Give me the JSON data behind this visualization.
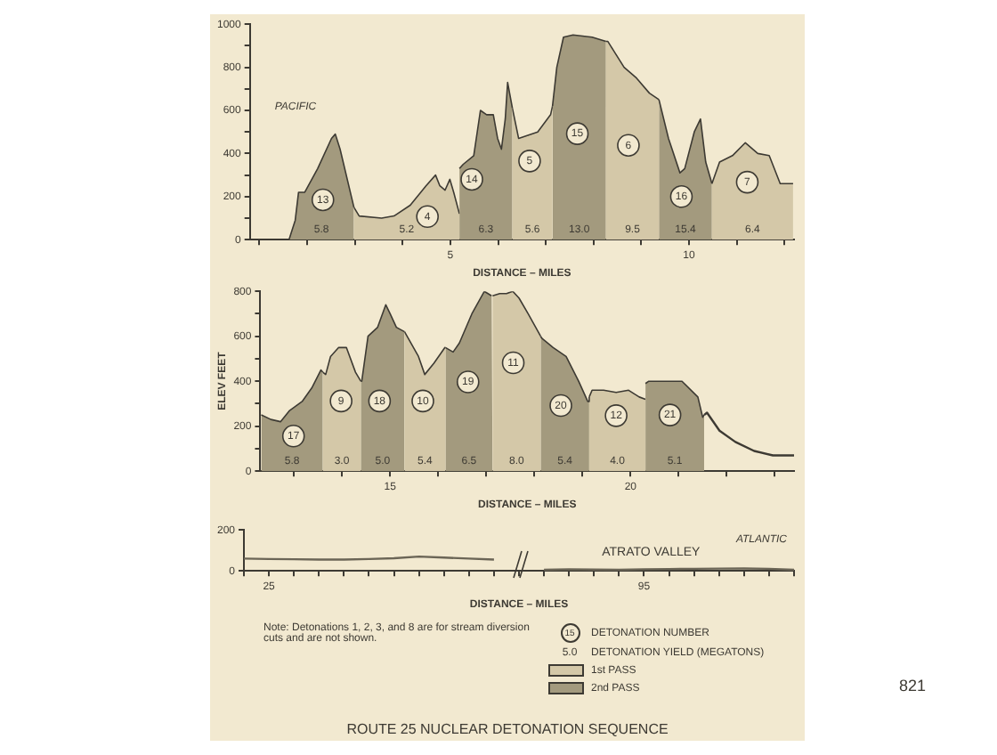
{
  "chart_data": [
    {
      "type": "area",
      "xlabel": "DISTANCE – MILES",
      "xlim": [
        0.8,
        12.2
      ],
      "xticks": [
        {
          "value": 1,
          "label": null
        },
        {
          "value": 2,
          "label": null
        },
        {
          "value": 3,
          "label": null
        },
        {
          "value": 4,
          "label": null
        },
        5,
        {
          "value": 6,
          "label": null
        },
        {
          "value": 7,
          "label": null
        },
        {
          "value": 8,
          "label": null
        },
        {
          "value": 9,
          "label": null
        },
        10,
        {
          "value": 11,
          "label": null
        },
        {
          "value": 12,
          "label": null
        }
      ],
      "ylim": [
        0,
        1000
      ],
      "yticks": [
        0,
        {
          "value": 100,
          "label": null
        },
        200,
        {
          "value": 300,
          "label": null
        },
        400,
        {
          "value": 500,
          "label": null
        },
        600,
        {
          "value": 700,
          "label": null
        },
        800,
        {
          "value": 900,
          "label": null
        },
        1000
      ],
      "grid": false,
      "legend": "bottom",
      "series": [
        {
          "name": "2nd PASS",
          "color": "#a39a7e",
          "x": [
            1.62,
            1.75,
            1.82,
            1.95,
            2.22,
            2.51,
            2.59,
            2.69,
            2.98,
            null,
            5.19,
            5.27,
            5.49,
            5.63,
            5.76,
            5.9,
            5.99,
            6.07,
            6.15,
            6.2,
            6.3,
            null,
            7.14,
            7.23,
            7.37,
            7.57,
            7.97,
            8.26,
            null,
            9.37,
            9.57,
            9.81,
            9.91,
            10.11,
            10.24,
            10.35,
            10.48
          ],
          "values": [
            0,
            90,
            220,
            220,
            330,
            470,
            490,
            420,
            150,
            null,
            330,
            350,
            390,
            600,
            580,
            580,
            470,
            420,
            560,
            730,
            610,
            null,
            620,
            800,
            940,
            950,
            940,
            920,
            null,
            650,
            470,
            310,
            330,
            500,
            560,
            360,
            260
          ]
        },
        {
          "name": "1st PASS",
          "color": "#d4c8a8",
          "x": [
            2.98,
            3.09,
            3.56,
            3.82,
            4.16,
            4.49,
            4.69,
            4.78,
            4.89,
            4.99,
            5.07,
            5.19,
            null,
            6.3,
            6.43,
            6.83,
            7.1,
            7.14,
            null,
            8.26,
            8.3,
            8.64,
            8.9,
            9.17,
            9.37,
            null,
            10.48,
            10.64,
            10.91,
            11.18,
            11.44,
            11.68,
            11.91,
            12.18
          ],
          "values": [
            150,
            110,
            100,
            110,
            160,
            250,
            300,
            250,
            230,
            280,
            220,
            120,
            null,
            610,
            470,
            500,
            580,
            620,
            null,
            920,
            920,
            800,
            750,
            680,
            650,
            null,
            260,
            360,
            390,
            450,
            400,
            390,
            260,
            260
          ]
        }
      ],
      "annotations": [
        "PACIFIC",
        {
          "text": "13",
          "x": 2.33,
          "y": 185
        },
        {
          "text": "4",
          "x": 4.52,
          "y": 107
        },
        {
          "text": "14",
          "x": 5.45,
          "y": 280
        },
        {
          "text": "5",
          "x": 6.66,
          "y": 365
        },
        {
          "text": "15",
          "x": 7.66,
          "y": 492
        },
        {
          "text": "6",
          "x": 8.73,
          "y": 438
        },
        {
          "text": "16",
          "x": 9.84,
          "y": 200
        },
        {
          "text": "7",
          "x": 11.22,
          "y": 267
        },
        "5.8",
        "5.2",
        "6.3",
        "5.6",
        "13.0",
        "9.5",
        "15.4",
        "6.4"
      ]
    },
    {
      "type": "area",
      "xlabel": "DISTANCE – MILES",
      "ylabel": "ELEV FEET",
      "xlim": [
        12.3,
        23.4
      ],
      "xticks": [
        {
          "value": 13,
          "label": null
        },
        {
          "value": 14,
          "label": null
        },
        15,
        {
          "value": 16,
          "label": null
        },
        {
          "value": 17,
          "label": null
        },
        {
          "value": 18,
          "label": null
        },
        {
          "value": 19,
          "label": null
        },
        20,
        {
          "value": 21,
          "label": null
        },
        {
          "value": 22,
          "label": null
        },
        {
          "value": 23,
          "label": null
        }
      ],
      "ylim": [
        0,
        800
      ],
      "yticks": [
        0,
        {
          "value": 100,
          "label": null
        },
        200,
        {
          "value": 300,
          "label": null
        },
        400,
        {
          "value": 500,
          "label": null
        },
        600,
        {
          "value": 700,
          "label": null
        },
        800
      ],
      "grid": false,
      "series": [
        {
          "color": "#a39a7e",
          "x": [
            12.32,
            12.52,
            12.72,
            12.91,
            13.17,
            13.37,
            13.56,
            13.6,
            null,
            14.39,
            14.41,
            14.54,
            14.74,
            14.91,
            15.0,
            15.13,
            15.3,
            null,
            16.15,
            16.31,
            16.44,
            16.7,
            16.96,
            17.11,
            17.13,
            null,
            18.13,
            18.16,
            18.39,
            18.66,
            18.92,
            19.11,
            19.14,
            null,
            20.31,
            20.38,
            20.74,
            21.07,
            21.4,
            21.5,
            21.53
          ],
          "values": [
            250,
            230,
            220,
            270,
            310,
            370,
            450,
            440,
            null,
            400,
            400,
            600,
            640,
            740,
            700,
            640,
            620,
            null,
            550,
            530,
            570,
            700,
            800,
            780,
            780,
            null,
            600,
            590,
            550,
            510,
            400,
            310,
            330,
            null,
            390,
            400,
            400,
            400,
            330,
            240,
            250
          ]
        },
        {
          "color": "#d4c8a8",
          "x": [
            13.6,
            13.66,
            13.76,
            13.93,
            14.09,
            14.28,
            14.39,
            null,
            15.3,
            15.59,
            15.72,
            15.91,
            16.14,
            16.15,
            null,
            17.13,
            17.28,
            17.42,
            17.55,
            17.68,
            17.87,
            18.13,
            null,
            19.14,
            19.2,
            19.44,
            19.7,
            19.96,
            20.18,
            20.31
          ],
          "values": [
            440,
            430,
            510,
            550,
            550,
            440,
            400,
            null,
            620,
            510,
            430,
            480,
            550,
            550,
            null,
            780,
            790,
            790,
            800,
            770,
            700,
            600,
            null,
            330,
            360,
            360,
            350,
            360,
            330,
            320
          ]
        },
        {
          "type": "line",
          "color": "#3d3a33",
          "x": [
            21.53,
            21.59,
            21.85,
            22.18,
            22.57,
            22.96,
            23.4
          ],
          "values": [
            250,
            260,
            180,
            130,
            90,
            70,
            70
          ]
        }
      ],
      "annotations": [
        {
          "text": "17",
          "x": 12.99,
          "y": 156
        },
        {
          "text": "9",
          "x": 13.98,
          "y": 312
        },
        {
          "text": "18",
          "x": 14.78,
          "y": 312
        },
        {
          "text": "10",
          "x": 15.68,
          "y": 312
        },
        {
          "text": "19",
          "x": 16.62,
          "y": 397
        },
        {
          "text": "11",
          "x": 17.56,
          "y": 482
        },
        {
          "text": "20",
          "x": 18.55,
          "y": 292
        },
        {
          "text": "12",
          "x": 19.7,
          "y": 247
        },
        {
          "text": "21",
          "x": 20.82,
          "y": 250
        },
        "5.8",
        "3.0",
        "5.0",
        "5.4",
        "6.5",
        "8.0",
        "5.4",
        "4.0",
        "5.1"
      ]
    },
    {
      "type": "line",
      "title": "ROUTE 25 NUCLEAR DETONATION SEQUENCE",
      "xlabel": "DISTANCE – MILES",
      "categories": [
        null,
        "25",
        null,
        null,
        null,
        null,
        null,
        null,
        null,
        null,
        null,
        null,
        null,
        null,
        null,
        null,
        "95",
        null,
        null,
        null,
        null,
        null,
        null
      ],
      "ylim": [
        0,
        200
      ],
      "yticks": [
        0,
        200
      ],
      "grid": false,
      "series": [
        {
          "color": "#6b6556",
          "values": [
            60,
            58,
            57,
            55,
            55,
            58,
            62,
            70,
            65,
            60,
            55,
            null,
            5,
            8,
            6,
            5,
            8,
            9,
            10,
            11,
            12,
            10,
            5
          ]
        }
      ],
      "annotations": [
        "ATLANTIC",
        "ATRATO VALLEY",
        "15",
        "DETONATION NUMBER",
        "5.0",
        "DETONATION YIELD (MEGATONS)",
        "Note: Detonations 1, 2, 3, and 8 are for stream diversion cuts and are not shown.",
        "821"
      ]
    }
  ]
}
